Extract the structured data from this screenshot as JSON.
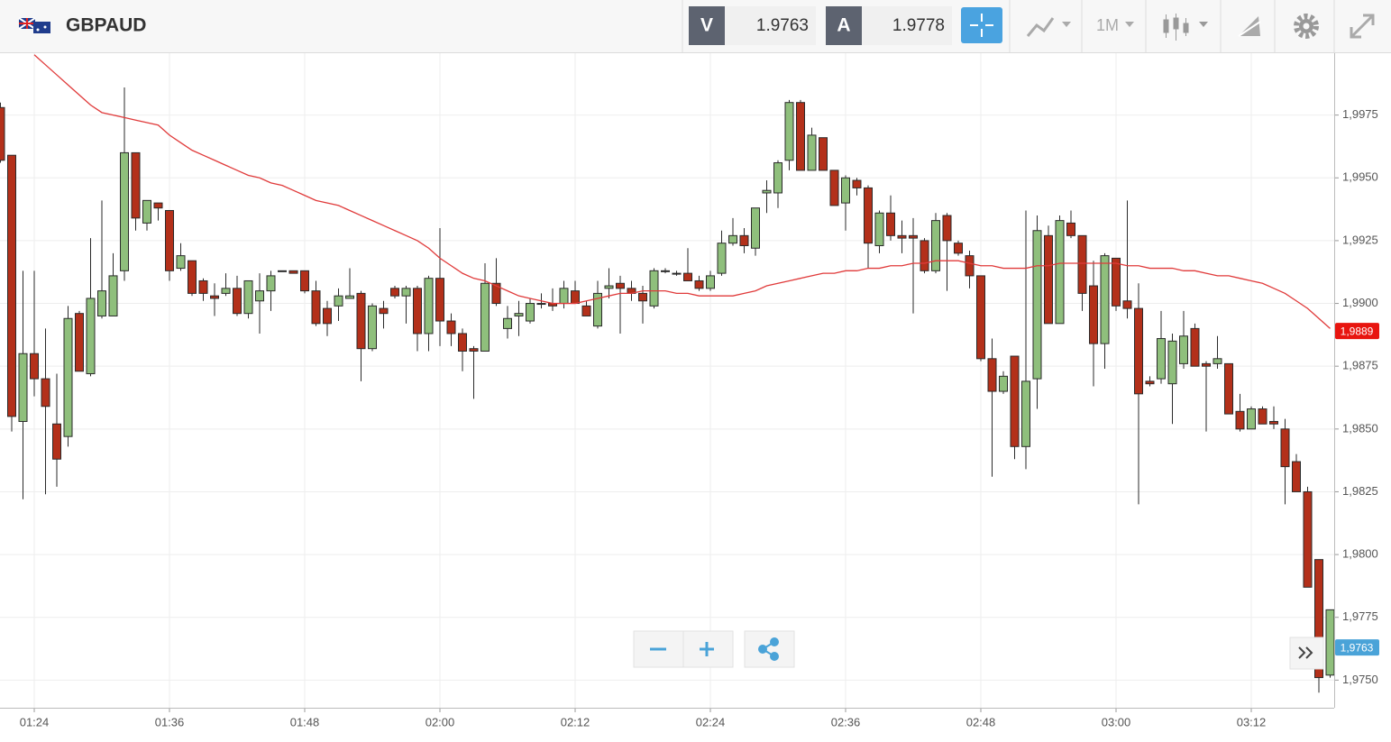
{
  "toolbar": {
    "symbol": "GBPAUD",
    "bid_label": "V",
    "bid": 1.9763,
    "ask_label": "A",
    "ask": 1.9778,
    "timeframe": "1M"
  },
  "chart_data": {
    "type": "candlestick",
    "x": [
      "01:21",
      "01:22",
      "01:23",
      "01:24",
      "01:25",
      "01:26",
      "01:27",
      "01:28",
      "01:29",
      "01:30",
      "01:31",
      "01:32",
      "01:33",
      "01:34",
      "01:35",
      "01:36",
      "01:37",
      "01:38",
      "01:39",
      "01:40",
      "01:41",
      "01:42",
      "01:43",
      "01:44",
      "01:45",
      "01:46",
      "01:47",
      "01:48",
      "01:49",
      "01:50",
      "01:51",
      "01:52",
      "01:53",
      "01:54",
      "01:55",
      "01:56",
      "01:57",
      "01:58",
      "01:59",
      "02:00",
      "02:01",
      "02:02",
      "02:03",
      "02:04",
      "02:05",
      "02:06",
      "02:07",
      "02:08",
      "02:09",
      "02:10",
      "02:11",
      "02:12",
      "02:13",
      "02:14",
      "02:15",
      "02:16",
      "02:17",
      "02:18",
      "02:19",
      "02:20",
      "02:21",
      "02:22",
      "02:23",
      "02:24",
      "02:25",
      "02:26",
      "02:27",
      "02:28",
      "02:29",
      "02:30",
      "02:31",
      "02:32",
      "02:33",
      "02:34",
      "02:35",
      "02:36",
      "02:37",
      "02:38",
      "02:39",
      "02:40",
      "02:41",
      "02:42",
      "02:43",
      "02:44",
      "02:45",
      "02:46",
      "02:47",
      "02:48",
      "02:49",
      "02:50",
      "02:51",
      "02:52",
      "02:53",
      "02:54",
      "02:55",
      "02:56",
      "02:57",
      "02:58",
      "02:59",
      "03:00",
      "03:01",
      "03:02",
      "03:03",
      "03:04",
      "03:05",
      "03:06",
      "03:07",
      "03:08",
      "03:09",
      "03:10",
      "03:11",
      "03:12",
      "03:13",
      "03:14",
      "03:15",
      "03:16",
      "03:17",
      "03:18",
      "03:19"
    ],
    "ohlc": {
      "open": [
        1.9978,
        1.9959,
        1.9853,
        1.988,
        1.987,
        1.9852,
        1.9847,
        1.9896,
        1.9872,
        1.9895,
        1.9895,
        1.9913,
        1.996,
        1.9932,
        1.994,
        1.9937,
        1.9914,
        1.9917,
        1.9909,
        1.9903,
        1.9904,
        1.9906,
        1.9896,
        1.9901,
        1.9905,
        1.9913,
        1.9913,
        1.9913,
        1.9905,
        1.9898,
        1.9899,
        1.9902,
        1.9904,
        1.9882,
        1.9898,
        1.9906,
        1.9903,
        1.9906,
        1.9888,
        1.991,
        1.9893,
        1.9888,
        1.9882,
        1.9881,
        1.9908,
        1.989,
        1.9895,
        1.9893,
        1.99,
        1.99,
        1.99,
        1.9905,
        1.9899,
        1.9891,
        1.9906,
        1.9908,
        1.9906,
        1.9904,
        1.9899,
        1.9913,
        1.9912,
        1.9912,
        1.9909,
        1.9906,
        1.9912,
        1.9924,
        1.9927,
        1.9922,
        1.9944,
        1.9944,
        1.9957,
        1.998,
        1.9953,
        1.9966,
        1.9953,
        1.994,
        1.9949,
        1.9946,
        1.9923,
        1.9936,
        1.9927,
        1.9927,
        1.9925,
        1.9913,
        1.9935,
        1.9924,
        1.9919,
        1.9911,
        1.9878,
        1.9865,
        1.9879,
        1.9843,
        1.987,
        1.9927,
        1.9892,
        1.9932,
        1.9927,
        1.9907,
        1.9884,
        1.9918,
        1.9901,
        1.9898,
        1.9869,
        1.987,
        1.9868,
        1.9876,
        1.989,
        1.9876,
        1.9876,
        1.9876,
        1.9857,
        1.985,
        1.9858,
        1.9853,
        1.985,
        1.9837,
        1.9825,
        1.9798,
        1.9752
      ],
      "high": [
        1.998,
        1.9959,
        1.9913,
        1.9913,
        1.989,
        1.9872,
        1.9899,
        1.9897,
        1.9926,
        1.9941,
        1.992,
        1.9986,
        1.996,
        1.9941,
        1.994,
        1.9937,
        1.9924,
        1.9917,
        1.991,
        1.9908,
        1.9912,
        1.9911,
        1.9909,
        1.9912,
        1.9913,
        1.9913,
        1.9913,
        1.9913,
        1.9909,
        1.9901,
        1.9906,
        1.9914,
        1.9905,
        1.99,
        1.9901,
        1.9907,
        1.9907,
        1.9907,
        1.9911,
        1.993,
        1.9896,
        1.989,
        1.9883,
        1.9916,
        1.9918,
        1.9899,
        1.9901,
        1.9902,
        1.9904,
        1.9906,
        1.9909,
        1.9909,
        1.9901,
        1.9909,
        1.9914,
        1.9911,
        1.9909,
        1.9907,
        1.9914,
        1.9914,
        1.9913,
        1.9922,
        1.9911,
        1.9913,
        1.9929,
        1.9934,
        1.993,
        1.9938,
        1.9949,
        1.9957,
        1.9981,
        1.9981,
        1.997,
        1.9966,
        1.9953,
        1.9951,
        1.995,
        1.9947,
        1.9937,
        1.9943,
        1.9933,
        1.9934,
        1.9926,
        1.9936,
        1.9936,
        1.9925,
        1.9921,
        1.9911,
        1.9886,
        1.9873,
        1.9879,
        1.9937,
        1.9935,
        1.9931,
        1.9935,
        1.9937,
        1.9927,
        1.9917,
        1.992,
        1.9918,
        1.9941,
        1.9908,
        1.9871,
        1.9897,
        1.9888,
        1.9897,
        1.9892,
        1.9877,
        1.9887,
        1.9876,
        1.9864,
        1.9859,
        1.9859,
        1.9859,
        1.9854,
        1.984,
        1.9827,
        1.9798,
        1.9778
      ],
      "low": [
        1.9956,
        1.9849,
        1.9822,
        1.9863,
        1.9824,
        1.9827,
        1.9843,
        1.9873,
        1.9871,
        1.9894,
        1.9895,
        1.9909,
        1.9929,
        1.9929,
        1.9933,
        1.9909,
        1.9913,
        1.9903,
        1.9901,
        1.9895,
        1.9903,
        1.9895,
        1.9894,
        1.9888,
        1.9897,
        1.9913,
        1.9912,
        1.9904,
        1.9891,
        1.9887,
        1.9893,
        1.9902,
        1.9869,
        1.9881,
        1.989,
        1.9902,
        1.9892,
        1.9881,
        1.9881,
        1.9883,
        1.9883,
        1.9873,
        1.9862,
        1.9881,
        1.9899,
        1.9886,
        1.9887,
        1.9892,
        1.9898,
        1.9897,
        1.9898,
        1.99,
        1.9895,
        1.989,
        1.9902,
        1.9888,
        1.9901,
        1.9892,
        1.9898,
        1.9912,
        1.9911,
        1.9909,
        1.9905,
        1.9905,
        1.9911,
        1.9923,
        1.992,
        1.9919,
        1.9936,
        1.9938,
        1.9953,
        1.9953,
        1.9953,
        1.9953,
        1.9939,
        1.9929,
        1.9943,
        1.9914,
        1.992,
        1.9925,
        1.992,
        1.9896,
        1.9912,
        1.9912,
        1.9905,
        1.9919,
        1.9906,
        1.9877,
        1.9831,
        1.9864,
        1.9838,
        1.9834,
        1.9858,
        1.9892,
        1.9892,
        1.9926,
        1.9897,
        1.9867,
        1.9874,
        1.9897,
        1.9894,
        1.982,
        1.9867,
        1.9868,
        1.9852,
        1.9874,
        1.9875,
        1.9849,
        1.9874,
        1.9856,
        1.9849,
        1.985,
        1.9852,
        1.985,
        1.982,
        1.9825,
        1.9787,
        1.9745,
        1.9751
      ],
      "close": [
        1.9957,
        1.9855,
        1.988,
        1.987,
        1.9859,
        1.9838,
        1.9894,
        1.9873,
        1.9902,
        1.9905,
        1.9911,
        1.996,
        1.9934,
        1.9941,
        1.9938,
        1.9913,
        1.9919,
        1.9904,
        1.9904,
        1.9902,
        1.9906,
        1.9896,
        1.9909,
        1.9905,
        1.9911,
        1.9913,
        1.9912,
        1.9905,
        1.9892,
        1.9892,
        1.9903,
        1.9903,
        1.9882,
        1.9899,
        1.9896,
        1.9903,
        1.9906,
        1.9888,
        1.991,
        1.9893,
        1.9888,
        1.9881,
        1.9881,
        1.9908,
        1.99,
        1.9894,
        1.9896,
        1.99,
        1.99,
        1.9899,
        1.9906,
        1.99,
        1.9895,
        1.9904,
        1.9907,
        1.9906,
        1.9904,
        1.9901,
        1.9913,
        1.9913,
        1.9912,
        1.9909,
        1.9906,
        1.9911,
        1.9924,
        1.9927,
        1.9923,
        1.9938,
        1.9945,
        1.9956,
        1.998,
        1.9953,
        1.9967,
        1.9953,
        1.9939,
        1.995,
        1.9946,
        1.9924,
        1.9936,
        1.9927,
        1.9926,
        1.9926,
        1.9913,
        1.9933,
        1.9925,
        1.992,
        1.9911,
        1.9878,
        1.9865,
        1.9871,
        1.9843,
        1.9869,
        1.9929,
        1.9892,
        1.9933,
        1.9927,
        1.9904,
        1.9884,
        1.9919,
        1.9899,
        1.9898,
        1.9864,
        1.9868,
        1.9886,
        1.9885,
        1.9887,
        1.9875,
        1.9875,
        1.9878,
        1.9856,
        1.985,
        1.9858,
        1.9852,
        1.9852,
        1.9835,
        1.9825,
        1.9787,
        1.9751,
        1.9778
      ]
    },
    "up_color": "#8fbf7c",
    "down_color": "#b3301a",
    "moving_average": {
      "color": "#e03a3a",
      "values": [
        null,
        null,
        null,
        1.9999,
        1.9995,
        1.9991,
        1.9987,
        1.9983,
        1.9979,
        1.9976,
        1.9975,
        1.9974,
        1.9973,
        1.9972,
        1.9971,
        1.9967,
        1.9964,
        1.9961,
        1.9959,
        1.9957,
        1.9955,
        1.9953,
        1.9951,
        1.995,
        1.9948,
        1.9947,
        1.9945,
        1.9943,
        1.9941,
        1.994,
        1.9939,
        1.9937,
        1.9935,
        1.9933,
        1.9931,
        1.9929,
        1.9927,
        1.9925,
        1.9922,
        1.9918,
        1.9915,
        1.9912,
        1.991,
        1.9909,
        1.9907,
        1.9905,
        1.9903,
        1.9902,
        1.9901,
        1.99,
        1.99,
        1.99,
        1.9901,
        1.9902,
        1.9903,
        1.9904,
        1.9904,
        1.9905,
        1.9905,
        1.9905,
        1.9904,
        1.9904,
        1.9903,
        1.9903,
        1.9903,
        1.9903,
        1.9904,
        1.9905,
        1.9907,
        1.9908,
        1.9909,
        1.991,
        1.9911,
        1.9912,
        1.9912,
        1.9913,
        1.9913,
        1.9914,
        1.9914,
        1.9915,
        1.9915,
        1.9916,
        1.9916,
        1.9917,
        1.9917,
        1.9917,
        1.9916,
        1.9915,
        1.9915,
        1.9914,
        1.9914,
        1.9914,
        1.9915,
        1.9915,
        1.9916,
        1.9916,
        1.9916,
        1.9916,
        1.9916,
        1.9916,
        1.9915,
        1.9915,
        1.9914,
        1.9914,
        1.9914,
        1.9913,
        1.9913,
        1.9912,
        1.9911,
        1.9911,
        1.991,
        1.9909,
        1.9908,
        1.9906,
        1.9904,
        1.9901,
        1.9898,
        1.9894,
        1.989
      ]
    },
    "ylim": [
      1.9739,
      2.0
    ],
    "yticks": [
      {
        "value": 1.975,
        "label": "1,9750"
      },
      {
        "value": 1.9775,
        "label": "1,9775"
      },
      {
        "value": 1.98,
        "label": "1,9800"
      },
      {
        "value": 1.9825,
        "label": "1,9825"
      },
      {
        "value": 1.985,
        "label": "1,9850"
      },
      {
        "value": 1.9875,
        "label": "1,9875"
      },
      {
        "value": 1.99,
        "label": "1,9900"
      },
      {
        "value": 1.9925,
        "label": "1,9925"
      },
      {
        "value": 1.995,
        "label": "1,9950"
      },
      {
        "value": 1.9975,
        "label": "1,9975"
      }
    ],
    "xticks": [
      "01:24",
      "01:36",
      "01:48",
      "02:00",
      "02:12",
      "02:24",
      "02:36",
      "02:48",
      "03:00",
      "03:12"
    ],
    "grid": true,
    "price_labels": [
      {
        "value": 1.9889,
        "label": "1,9889",
        "color": "#e8150f"
      },
      {
        "value": 1.9763,
        "label": "1,9763",
        "color": "#4aa3d8"
      }
    ]
  }
}
